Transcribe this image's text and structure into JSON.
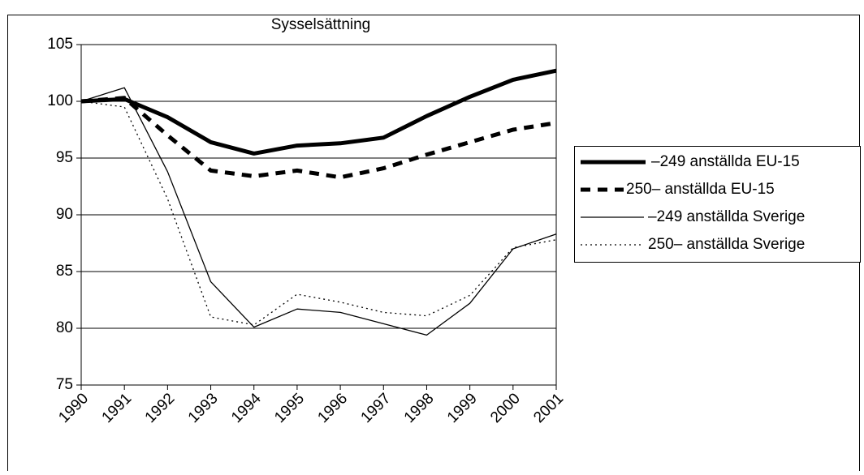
{
  "chart_data": {
    "type": "line",
    "title": "Sysselsättning",
    "categories": [
      "1990",
      "1991",
      "1992",
      "1993",
      "1994",
      "1995",
      "1996",
      "1997",
      "1998",
      "1999",
      "2000",
      "2001"
    ],
    "series": [
      {
        "name": "–249 anställda EU-15",
        "color": "#000000",
        "values": [
          100,
          100.2,
          98.6,
          96.4,
          95.4,
          96.1,
          96.3,
          96.8,
          98.7,
          100.4,
          101.9,
          102.7
        ]
      },
      {
        "name": "250– anställda EU-15",
        "color": "#000000",
        "values": [
          100,
          100.3,
          97.0,
          93.9,
          93.4,
          93.9,
          93.3,
          94.1,
          95.3,
          96.4,
          97.5,
          98.1
        ]
      },
      {
        "name": "–249 anställda Sverige",
        "color": "#000000",
        "values": [
          100,
          101.2,
          93.8,
          84.1,
          80.1,
          81.7,
          81.4,
          80.4,
          79.4,
          82.2,
          87.0,
          88.3
        ]
      },
      {
        "name": "250– anställda Sverige",
        "color": "#000000",
        "values": [
          100,
          99.5,
          91.4,
          81.0,
          80.3,
          83.0,
          82.3,
          81.4,
          81.1,
          82.9,
          87.1,
          87.8
        ]
      }
    ],
    "ylim": [
      75,
      105
    ],
    "yticks": [
      75,
      80,
      85,
      90,
      95,
      100,
      105
    ],
    "grid": true,
    "legend": "right"
  }
}
